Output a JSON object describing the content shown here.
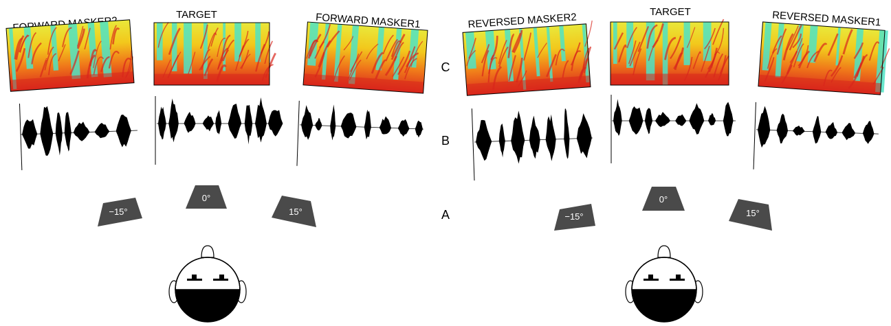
{
  "row_labels": {
    "c": "C",
    "b": "B",
    "a": "A"
  },
  "left_panel": {
    "masker2_title": "FORWARD MASKER2",
    "target_title": "TARGET",
    "masker1_title": "FORWARD MASKER1",
    "speakers": [
      "−15°",
      "0°",
      "15°"
    ]
  },
  "right_panel": {
    "masker2_title": "REVERSED MASKER2",
    "target_title": "TARGET",
    "masker1_title": "REVERSED MASKER1",
    "speakers": [
      "−15°",
      "0°",
      "15°"
    ]
  },
  "colors": {
    "spectrogram_red": "#d9261c",
    "spectrogram_orange": "#f07a1a",
    "spectrogram_yellow": "#f2e21c",
    "spectrogram_cyan": "#4fe3c4",
    "speaker_fill": "#4a4a4a",
    "speaker_text": "#ffffff",
    "waveform": "#000000"
  }
}
